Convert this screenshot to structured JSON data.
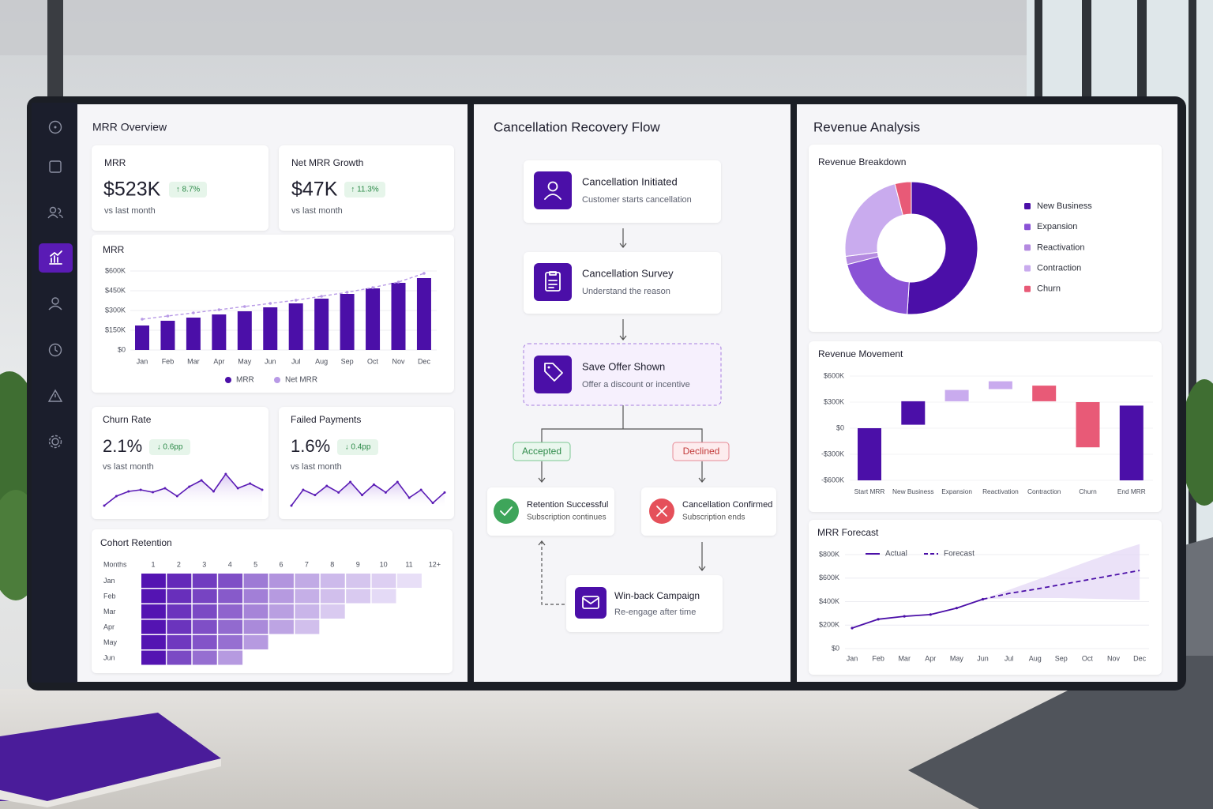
{
  "mrr_overview": {
    "title": "MRR Overview",
    "kpis": [
      {
        "label": "MRR",
        "value": "$523K",
        "change": "↑ 8.7%",
        "note": "vs last month"
      },
      {
        "label": "Net MRR Growth",
        "value": "$47K",
        "change": "↑ 11.3%",
        "note": "vs last month"
      }
    ],
    "mrr_chart": {
      "type": "bar",
      "title": "MRR",
      "categories": [
        "Jan",
        "Feb",
        "Mar",
        "Apr",
        "May",
        "Jun",
        "Jul",
        "Aug",
        "Sep",
        "Oct",
        "Nov",
        "Dec"
      ],
      "series": [
        {
          "name": "MRR",
          "type": "bar",
          "color": "#4b0fa8",
          "values": [
            186000,
            222000,
            246000,
            270000,
            294000,
            324000,
            354000,
            390000,
            426000,
            468000,
            510000,
            546000
          ]
        },
        {
          "name": "Net MRR",
          "type": "line",
          "color": "#b89ae6",
          "values": [
            234000,
            258000,
            282000,
            306000,
            330000,
            354000,
            378000,
            408000,
            438000,
            474000,
            516000,
            582000
          ]
        }
      ],
      "ylim": [
        0,
        600000
      ],
      "yticks": [
        {
          "value": 0,
          "label": "$0"
        },
        {
          "value": 150000,
          "label": "$150K"
        },
        {
          "value": 300000,
          "label": "$300K"
        },
        {
          "value": 450000,
          "label": "$450K"
        },
        {
          "value": 600000,
          "label": "$600K"
        }
      ],
      "grid": true
    },
    "small_kpis": [
      {
        "title": "Churn Rate",
        "value": "2.1%",
        "change": "↓ 0.6pp",
        "note": "vs last month",
        "sparkline": {
          "type": "line",
          "color": "#5a1bb5",
          "values": [
            18,
            30,
            36,
            38,
            35,
            40,
            30,
            42,
            50,
            36,
            58,
            40,
            46,
            38
          ]
        }
      },
      {
        "title": "Failed Payments",
        "value": "1.6%",
        "change": "↓ 0.4pp",
        "note": "vs last month",
        "sparkline": {
          "type": "line",
          "color": "#5a1bb5",
          "values": [
            20,
            32,
            28,
            35,
            30,
            38,
            28,
            36,
            30,
            38,
            26,
            32,
            22,
            30
          ]
        }
      }
    ],
    "cohort": {
      "type": "heatmap",
      "title": "Cohort Retention",
      "corner_label": "Months",
      "columns": [
        "1",
        "2",
        "3",
        "4",
        "5",
        "6",
        "7",
        "8",
        "9",
        "10",
        "11",
        "12+"
      ],
      "rows": [
        "Jan",
        "Feb",
        "Mar",
        "Apr",
        "May",
        "Jun"
      ],
      "values": [
        [
          100,
          92,
          85,
          78,
          62,
          52,
          44,
          38,
          34,
          30,
          24
        ],
        [
          100,
          90,
          82,
          74,
          60,
          50,
          42,
          36,
          32,
          26
        ],
        [
          100,
          88,
          80,
          70,
          58,
          48,
          40,
          32
        ],
        [
          100,
          88,
          78,
          68,
          56,
          46,
          36
        ],
        [
          100,
          86,
          76,
          66,
          50
        ],
        [
          100,
          80,
          66,
          50
        ]
      ]
    }
  },
  "recovery_flow": {
    "title": "Cancellation Recovery Flow",
    "steps": [
      {
        "title": "Cancellation Initiated",
        "subtitle": "Customer starts cancellation"
      },
      {
        "title": "Cancellation Survey",
        "subtitle": "Understand the reason"
      },
      {
        "title": "Save Offer Shown",
        "subtitle": "Offer a discount or incentive"
      }
    ],
    "branches": [
      "Accepted",
      "Declined"
    ],
    "outcomes": [
      {
        "title": "Retention Successful",
        "subtitle": "Subscription continues"
      },
      {
        "title": "Cancellation Confirmed",
        "subtitle": "Subscription ends"
      }
    ],
    "winback": {
      "title": "Win-back Campaign",
      "subtitle": "Re-engage after time"
    }
  },
  "revenue_analysis": {
    "title": "Revenue Analysis",
    "breakdown": {
      "type": "donut",
      "title": "Revenue Breakdown",
      "categories": [
        "New Business",
        "Expansion",
        "Reactivation",
        "Contraction",
        "Churn"
      ],
      "values": [
        51,
        20,
        2,
        23,
        4
      ],
      "colors": [
        "#4b0fa8",
        "#8a52d6",
        "#b48ae0",
        "#c9abee",
        "#e85a77"
      ]
    },
    "movement": {
      "type": "waterfall",
      "title": "Revenue Movement",
      "categories": [
        "Start MRR",
        "New Business",
        "Expansion",
        "Reactivation",
        "Contraction",
        "Churn",
        "End MRR"
      ],
      "ranges": [
        [
          -600000,
          0
        ],
        [
          40000,
          310000
        ],
        [
          310000,
          440000
        ],
        [
          450000,
          540000
        ],
        [
          310000,
          490000
        ],
        [
          -220000,
          300000
        ],
        [
          -600000,
          260000
        ]
      ],
      "colors": [
        "#4b0fa8",
        "#4b0fa8",
        "#c9abee",
        "#c9abee",
        "#e85a77",
        "#e85a77",
        "#4b0fa8"
      ],
      "ylim": [
        -600000,
        600000
      ],
      "yticks": [
        {
          "value": -600000,
          "label": "-$600K"
        },
        {
          "value": -300000,
          "label": "-$300K"
        },
        {
          "value": 0,
          "label": "$0"
        },
        {
          "value": 300000,
          "label": "$300K"
        },
        {
          "value": 600000,
          "label": "$600K"
        }
      ]
    },
    "forecast": {
      "type": "line",
      "title": "MRR Forecast",
      "categories": [
        "Jan",
        "Feb",
        "Mar",
        "Apr",
        "May",
        "Jun",
        "Jul",
        "Aug",
        "Sep",
        "Oct",
        "Nov",
        "Dec"
      ],
      "series": [
        {
          "name": "Actual",
          "color": "#4b0fa8",
          "style": "solid",
          "values": [
            175000,
            250000,
            275000,
            290000,
            345000,
            420000,
            null,
            null,
            null,
            null,
            null,
            null
          ]
        },
        {
          "name": "Forecast",
          "color": "#4b0fa8",
          "style": "dashed",
          "values": [
            null,
            null,
            null,
            null,
            null,
            420000,
            470000,
            505000,
            545000,
            585000,
            625000,
            665000
          ]
        }
      ],
      "band": {
        "color": "#e4d8f6",
        "upper": [
          null,
          null,
          null,
          null,
          null,
          420000,
          500000,
          580000,
          660000,
          740000,
          820000,
          890000
        ],
        "lower": [
          null,
          null,
          null,
          null,
          null,
          420000,
          430000,
          430000,
          430000,
          425000,
          420000,
          415000
        ]
      },
      "ylim": [
        0,
        800000
      ],
      "yticks": [
        {
          "value": 0,
          "label": "$0"
        },
        {
          "value": 200000,
          "label": "$200K"
        },
        {
          "value": 400000,
          "label": "$400K"
        },
        {
          "value": 600000,
          "label": "$600K"
        },
        {
          "value": 800000,
          "label": "$800K"
        }
      ],
      "grid": true
    }
  }
}
